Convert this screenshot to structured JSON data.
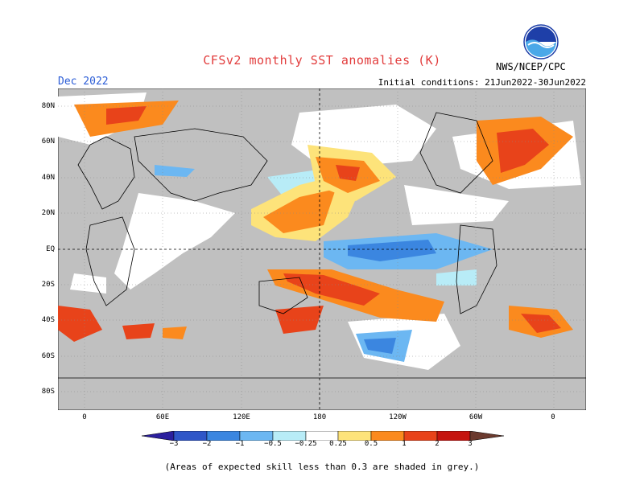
{
  "title": "CFSv2 monthly SST anomalies (K)",
  "month": "Dec 2022",
  "org": "NWS/NCEP/CPC",
  "init": "Initial conditions: 21Jun2022-30Jun2022",
  "logo_text": "NOAA",
  "note": "(Areas of expected skill less than 0.3 are shaded in grey.)",
  "lat_labels": [
    "80N",
    "60N",
    "40N",
    "20N",
    "EQ",
    "20S",
    "40S",
    "60S",
    "80S"
  ],
  "lon_labels": [
    "0",
    "60E",
    "120E",
    "180",
    "120W",
    "60W",
    "0"
  ],
  "colorbar": {
    "ticks": [
      "−3",
      "−2",
      "−1",
      "−0.5",
      "−0.25",
      "0.25",
      "0.5",
      "1",
      "2",
      "3"
    ],
    "colors": [
      "#2b1f9e",
      "#2f56c8",
      "#3b86e0",
      "#6cb7f2",
      "#b8ecf7",
      "#ffffff",
      "#fde37a",
      "#fb8a1e",
      "#e8431a",
      "#c5140f",
      "#8e0f0f",
      "#6b3a2e"
    ]
  },
  "colors": {
    "grey": "#c0c0c0",
    "land": "#c0c0c0",
    "title": "#e23c3c",
    "month": "#2a5cd6"
  }
}
